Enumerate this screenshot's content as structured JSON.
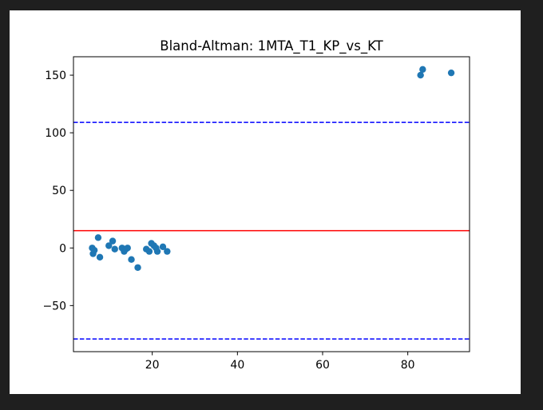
{
  "chart_data": {
    "type": "scatter",
    "title": "Bland-Altman: 1MTA_T1_KP_vs_KT",
    "xlabel": "",
    "ylabel": "",
    "xlim": [
      1.5,
      94.5
    ],
    "ylim": [
      -90,
      166
    ],
    "x_ticks": [
      20,
      40,
      60,
      80
    ],
    "y_ticks": [
      -50,
      0,
      50,
      100,
      150
    ],
    "x_tick_labels": [
      "20",
      "40",
      "60",
      "80"
    ],
    "y_tick_labels": [
      "−50",
      "0",
      "50",
      "100",
      "150"
    ],
    "grid": false,
    "reference_lines": [
      {
        "kind": "mean",
        "y": 15,
        "color": "#ff0000",
        "style": "solid"
      },
      {
        "kind": "upper-loa",
        "y": 109,
        "color": "#0000ff",
        "style": "dashed"
      },
      {
        "kind": "lower-loa",
        "y": -79,
        "color": "#0000ff",
        "style": "dashed"
      }
    ],
    "series": [
      {
        "color": "#1f77b4",
        "points": [
          {
            "x": 5.9,
            "y": 0
          },
          {
            "x": 6.1,
            "y": -5
          },
          {
            "x": 6.4,
            "y": -2
          },
          {
            "x": 7.3,
            "y": 9
          },
          {
            "x": 7.7,
            "y": -8
          },
          {
            "x": 9.8,
            "y": 2
          },
          {
            "x": 10.7,
            "y": 6
          },
          {
            "x": 11.2,
            "y": -1
          },
          {
            "x": 12.9,
            "y": 0
          },
          {
            "x": 13.4,
            "y": -3
          },
          {
            "x": 13.8,
            "y": -1
          },
          {
            "x": 14.2,
            "y": 0
          },
          {
            "x": 15.1,
            "y": -10
          },
          {
            "x": 16.6,
            "y": -17
          },
          {
            "x": 18.6,
            "y": -1
          },
          {
            "x": 19.3,
            "y": -3
          },
          {
            "x": 19.8,
            "y": 4
          },
          {
            "x": 20.4,
            "y": 2
          },
          {
            "x": 20.9,
            "y": 0
          },
          {
            "x": 21.2,
            "y": -3
          },
          {
            "x": 22.5,
            "y": 1
          },
          {
            "x": 23.5,
            "y": -3
          },
          {
            "x": 83.0,
            "y": 150
          },
          {
            "x": 83.5,
            "y": 155
          },
          {
            "x": 90.2,
            "y": 152
          }
        ]
      }
    ]
  }
}
